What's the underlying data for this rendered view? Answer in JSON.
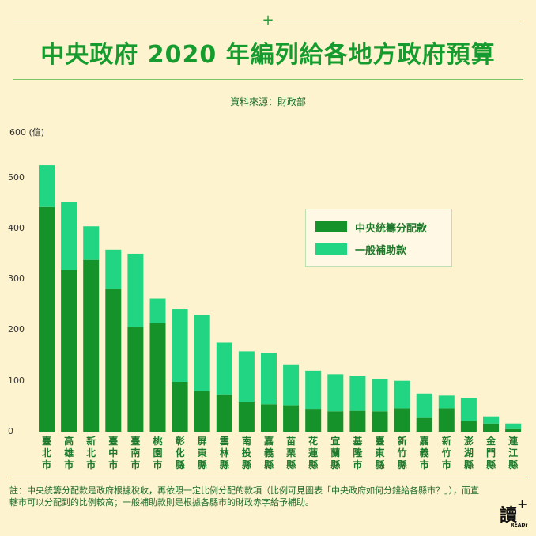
{
  "header": {
    "title": "中央政府 2020 年編列給各地方政府預算",
    "source": "資料來源：財政部"
  },
  "colors": {
    "accent": "#169c2e",
    "tax": "#16922a",
    "subsidy": "#22d583",
    "background": "#fdf3cf"
  },
  "chart_data": {
    "type": "bar",
    "stacked": true,
    "ylabel": "600 (億)",
    "ylim": [
      0,
      600
    ],
    "yticks": [
      0,
      100,
      200,
      300,
      400,
      500
    ],
    "categories": [
      "臺北市",
      "高雄市",
      "新北市",
      "臺中市",
      "臺南市",
      "桃園市",
      "彰化縣",
      "屏東縣",
      "雲林縣",
      "南投縣",
      "嘉義縣",
      "苗栗縣",
      "花蓮縣",
      "宜蘭縣",
      "基隆市",
      "臺東縣",
      "新竹縣",
      "嘉義市",
      "新竹市",
      "澎湖縣",
      "金門縣",
      "連江縣"
    ],
    "series": [
      {
        "name": "中央統籌分配款",
        "values": [
          442,
          318,
          338,
          281,
          206,
          214,
          98,
          80,
          72,
          58,
          54,
          52,
          45,
          40,
          41,
          40,
          46,
          27,
          46,
          21,
          16,
          5
        ]
      },
      {
        "name": "一般補助款",
        "values": [
          82,
          133,
          66,
          77,
          144,
          48,
          143,
          150,
          103,
          100,
          101,
          79,
          75,
          73,
          69,
          63,
          54,
          48,
          25,
          45,
          14,
          11
        ]
      }
    ],
    "legend_position": "top-right",
    "grid": false
  },
  "legend": {
    "tax_label": "中央統籌分配款",
    "subsidy_label": "一般補助款"
  },
  "footnote": "註：中央統籌分配款是政府根據稅收，再依照一定比例分配的款項（比例可見圖表「中央政府如何分錢給各縣市？」），而直轄市可以分配到的比例較高；一般補助款則是根據各縣市的財政赤字給予補助。",
  "logo": {
    "text": "讀",
    "sub": "READr"
  }
}
